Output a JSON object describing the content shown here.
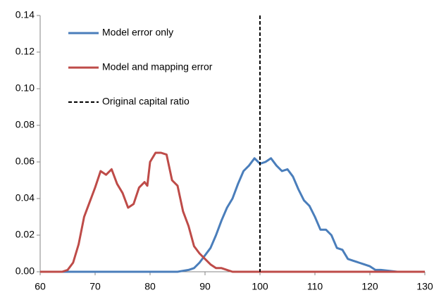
{
  "chart_data": {
    "type": "line",
    "xlim": [
      60,
      130
    ],
    "xticks": [
      60,
      70,
      80,
      90,
      100,
      110,
      120,
      130
    ],
    "ylim": [
      0,
      0.14
    ],
    "yticks": [
      {
        "value": 0,
        "label": "0.00"
      },
      {
        "value": 0.02,
        "label": "0.02"
      },
      {
        "value": 0.04,
        "label": "0.04"
      },
      {
        "value": 0.06,
        "label": "0.06"
      },
      {
        "value": 0.08,
        "label": "0.08"
      },
      {
        "value": 0.1,
        "label": "0.10"
      },
      {
        "value": 0.12,
        "label": "0.12"
      },
      {
        "value": 0.14,
        "label": "0.14"
      }
    ],
    "legend": "upper left",
    "series": [
      {
        "name": "Model error only",
        "color": "#4a7ebb",
        "x": [
          60,
          85,
          87,
          88,
          89,
          90,
          91,
          92,
          93,
          94,
          95,
          96,
          97,
          98,
          99,
          100,
          101,
          102,
          103,
          104,
          105,
          106,
          107,
          108,
          109,
          110,
          111,
          112,
          113,
          114,
          115,
          116,
          117,
          118,
          119,
          120,
          121,
          122,
          125,
          130
        ],
        "values": [
          0,
          0,
          0.001,
          0.002,
          0.005,
          0.009,
          0.013,
          0.02,
          0.028,
          0.035,
          0.04,
          0.048,
          0.055,
          0.058,
          0.062,
          0.059,
          0.06,
          0.062,
          0.058,
          0.055,
          0.056,
          0.052,
          0.045,
          0.039,
          0.036,
          0.03,
          0.023,
          0.023,
          0.02,
          0.013,
          0.012,
          0.007,
          0.006,
          0.005,
          0.004,
          0.003,
          0.001,
          0.001,
          0,
          0
        ]
      },
      {
        "name": "Model and mapping error",
        "color": "#be4b48",
        "x": [
          60,
          64,
          65,
          66,
          67,
          68,
          69,
          70,
          71,
          72,
          73,
          74,
          75,
          76,
          77,
          78,
          79,
          79.5,
          80,
          81,
          82,
          83,
          84,
          85,
          86,
          87,
          88,
          89,
          90,
          91,
          92,
          93,
          94,
          95,
          130
        ],
        "values": [
          0,
          0,
          0.001,
          0.005,
          0.015,
          0.03,
          0.038,
          0.046,
          0.055,
          0.053,
          0.056,
          0.048,
          0.043,
          0.035,
          0.037,
          0.046,
          0.049,
          0.047,
          0.06,
          0.065,
          0.065,
          0.064,
          0.05,
          0.047,
          0.033,
          0.025,
          0.014,
          0.01,
          0.007,
          0.004,
          0.002,
          0.002,
          0.001,
          0,
          0
        ]
      }
    ],
    "reference_line": {
      "name": "Original capital ratio",
      "x": 100,
      "color": "#000000"
    }
  }
}
